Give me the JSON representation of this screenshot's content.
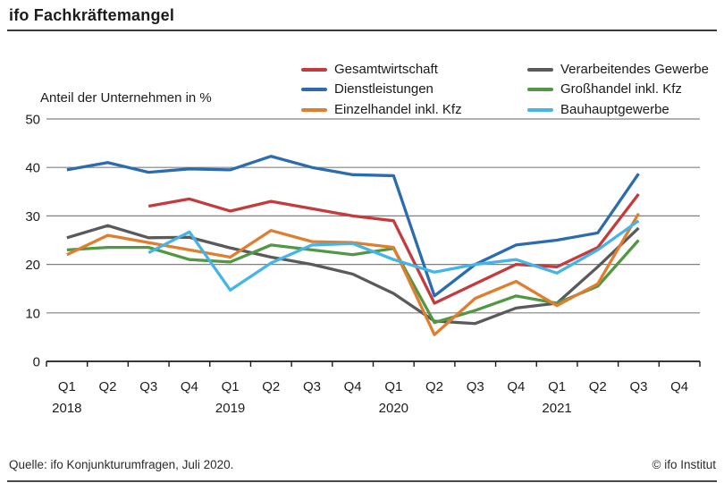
{
  "header": {
    "title": "ifo Fachkräftemangel"
  },
  "footer": {
    "source": "Quelle: ifo Konjunkturumfragen, Juli 2020.",
    "copyright": "© ifo Institut"
  },
  "chart_data": {
    "type": "line",
    "title": "ifo Fachkräftemangel",
    "axis_caption": "Anteil der Unternehmen in %",
    "ylim": [
      0,
      50
    ],
    "yticks": [
      0,
      10,
      20,
      30,
      40,
      50
    ],
    "grid": "horizontal",
    "legend_position": "top-right, two columns",
    "categories": [
      "Q1",
      "Q2",
      "Q3",
      "Q4",
      "Q1",
      "Q2",
      "Q3",
      "Q4",
      "Q1",
      "Q2",
      "Q3",
      "Q4",
      "Q1",
      "Q2",
      "Q3",
      "Q4"
    ],
    "years": [
      {
        "label": "2018",
        "index": 0
      },
      {
        "label": "2019",
        "index": 4
      },
      {
        "label": "2020",
        "index": 8
      },
      {
        "label": "2021",
        "index": 12
      }
    ],
    "series": [
      {
        "name": "Gesamtwirtschaft",
        "color": "#c43b3e",
        "values": [
          null,
          null,
          32,
          33.5,
          31,
          33,
          31.5,
          30,
          29,
          12,
          16,
          20,
          19.5,
          23.5,
          34.5,
          null
        ]
      },
      {
        "name": "Dienstleistungen",
        "color": "#2c6cae",
        "values": [
          39.5,
          41,
          39,
          39.7,
          39.5,
          42.3,
          40,
          38.5,
          38.3,
          13.5,
          20,
          24,
          25,
          26.5,
          38.7,
          null
        ]
      },
      {
        "name": "Einzelhandel inkl. Kfz",
        "color": "#e07e2f",
        "values": [
          22,
          26,
          24.5,
          23,
          21.5,
          27,
          24.7,
          24.5,
          23.5,
          5.5,
          13,
          16.5,
          11.5,
          16,
          30.5,
          null
        ]
      },
      {
        "name": "Verarbeitendes Gewerbe",
        "color": "#5a5a5c",
        "values": [
          25.5,
          28,
          25.5,
          25.6,
          23.4,
          21.5,
          20,
          18,
          14,
          8.3,
          7.8,
          11,
          12,
          19.5,
          27.5,
          null
        ]
      },
      {
        "name": "Großhandel inkl. Kfz",
        "color": "#529744",
        "values": [
          23,
          23.5,
          23.5,
          21,
          20.5,
          24,
          23,
          22,
          23.3,
          8,
          10.5,
          13.5,
          12,
          15.5,
          25,
          null
        ]
      },
      {
        "name": "Bauhauptgewerbe",
        "color": "#45b4e6",
        "values": [
          null,
          null,
          22.4,
          26.7,
          14.7,
          20.3,
          24,
          24.3,
          21,
          18.4,
          20,
          21,
          18.2,
          23,
          29,
          null
        ]
      }
    ]
  }
}
